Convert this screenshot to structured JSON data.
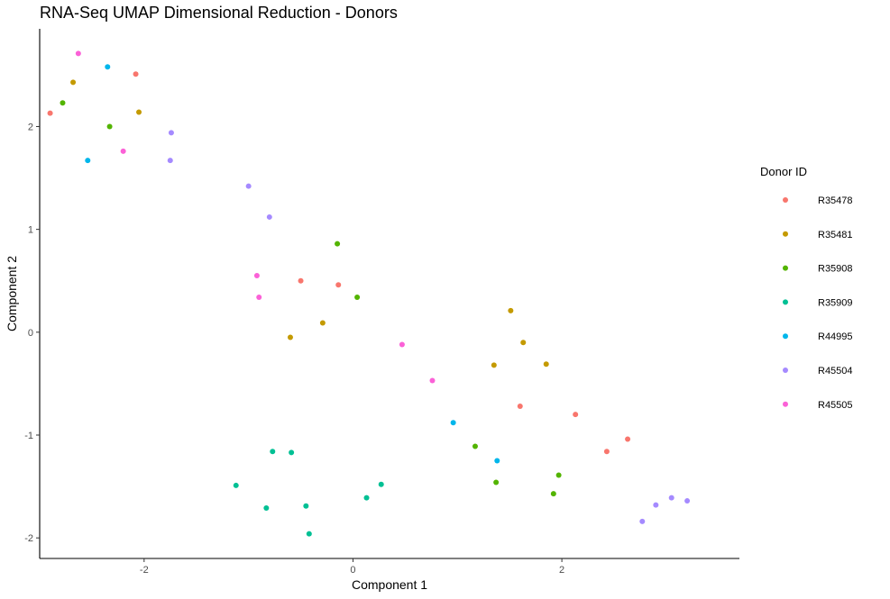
{
  "chart_data": {
    "type": "scatter",
    "title": "RNA-Seq UMAP Dimensional Reduction - Donors",
    "xlabel": "Component 1",
    "ylabel": "Component 2",
    "xlim": [
      -3.0,
      3.7
    ],
    "ylim": [
      -2.2,
      2.95
    ],
    "x_ticks": [
      -2,
      0,
      2
    ],
    "y_ticks": [
      -2,
      -1,
      0,
      1,
      2
    ],
    "grid": false,
    "legend": {
      "title": "Donor ID",
      "position": "right"
    },
    "series": [
      {
        "name": "R35478",
        "color": "#F8766D",
        "points": [
          [
            -2.9,
            2.13
          ],
          [
            -2.08,
            2.51
          ],
          [
            -0.5,
            0.5
          ],
          [
            -0.14,
            0.46
          ],
          [
            1.6,
            -0.72
          ],
          [
            2.13,
            -0.8
          ],
          [
            2.63,
            -1.04
          ],
          [
            2.43,
            -1.16
          ]
        ]
      },
      {
        "name": "R35481",
        "color": "#C49A00",
        "points": [
          [
            -2.68,
            2.43
          ],
          [
            -2.05,
            2.14
          ],
          [
            -0.6,
            -0.05
          ],
          [
            -0.29,
            0.09
          ],
          [
            1.51,
            0.21
          ],
          [
            1.63,
            -0.1
          ],
          [
            1.35,
            -0.32
          ],
          [
            1.85,
            -0.31
          ]
        ]
      },
      {
        "name": "R35908",
        "color": "#53B400",
        "points": [
          [
            -2.78,
            2.23
          ],
          [
            -2.33,
            2.0
          ],
          [
            -0.15,
            0.86
          ],
          [
            0.04,
            0.34
          ],
          [
            1.17,
            -1.11
          ],
          [
            1.37,
            -1.46
          ],
          [
            1.97,
            -1.39
          ],
          [
            1.92,
            -1.57
          ]
        ]
      },
      {
        "name": "R35909",
        "color": "#00C094",
        "points": [
          [
            -1.12,
            -1.49
          ],
          [
            -0.77,
            -1.16
          ],
          [
            -0.59,
            -1.17
          ],
          [
            -0.45,
            -1.69
          ],
          [
            -0.83,
            -1.71
          ],
          [
            -0.42,
            -1.96
          ],
          [
            0.13,
            -1.61
          ],
          [
            0.27,
            -1.48
          ]
        ]
      },
      {
        "name": "R44995",
        "color": "#00B6EB",
        "points": [
          [
            -2.35,
            2.58
          ],
          [
            -2.54,
            1.67
          ],
          [
            0.96,
            -0.88
          ],
          [
            1.38,
            -1.25
          ]
        ]
      },
      {
        "name": "R45504",
        "color": "#A58AFF",
        "points": [
          [
            -1.74,
            1.94
          ],
          [
            -1.75,
            1.67
          ],
          [
            -1.0,
            1.42
          ],
          [
            -0.8,
            1.12
          ],
          [
            2.77,
            -1.84
          ],
          [
            2.9,
            -1.68
          ],
          [
            3.05,
            -1.61
          ],
          [
            3.2,
            -1.64
          ]
        ]
      },
      {
        "name": "R45505",
        "color": "#FB61D7",
        "points": [
          [
            -2.63,
            2.71
          ],
          [
            -2.2,
            1.76
          ],
          [
            -0.92,
            0.55
          ],
          [
            -0.9,
            0.34
          ],
          [
            0.47,
            -0.12
          ],
          [
            0.76,
            -0.47
          ]
        ]
      }
    ]
  }
}
